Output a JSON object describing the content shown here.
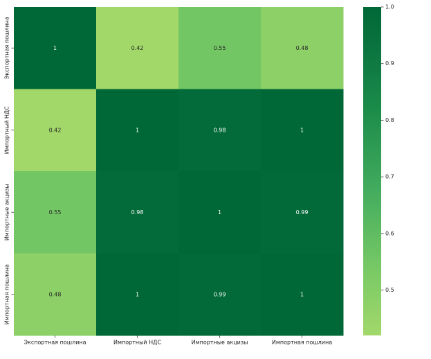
{
  "chart_data": {
    "type": "heatmap",
    "title": "",
    "xlabel": "",
    "ylabel": "",
    "x_labels": [
      "Экспортная пошлина",
      "Импортный НДС",
      "Импортные акцизы",
      "Импортная пошлина"
    ],
    "y_labels": [
      "Экспортная пошлина",
      "Импортный НДС",
      "Импортные акцизы",
      "Импортная пошлина"
    ],
    "values": [
      [
        1,
        0.42,
        0.55,
        0.48
      ],
      [
        0.42,
        1,
        0.98,
        1
      ],
      [
        0.55,
        0.98,
        1,
        0.99
      ],
      [
        0.48,
        1,
        0.99,
        1
      ]
    ],
    "cell_labels": [
      [
        "1",
        "0.42",
        "0.55",
        "0.48"
      ],
      [
        "0.42",
        "1",
        "0.98",
        "1"
      ],
      [
        "0.55",
        "0.98",
        "1",
        "0.99"
      ],
      [
        "0.48",
        "1",
        "0.99",
        "1"
      ]
    ],
    "colormap": "YlGn-like (light green to dark green)",
    "color_low": "#a2d86a",
    "color_high": "#006837",
    "vmin": 0.42,
    "vmax": 1.0,
    "colorbar": {
      "ticks": [
        1.0,
        0.9,
        0.8,
        0.7,
        0.6,
        0.5
      ],
      "tick_labels": [
        "1.0",
        "0.9",
        "0.8",
        "0.7",
        "0.6",
        "0.5"
      ],
      "placement": "right"
    },
    "grid": false
  }
}
